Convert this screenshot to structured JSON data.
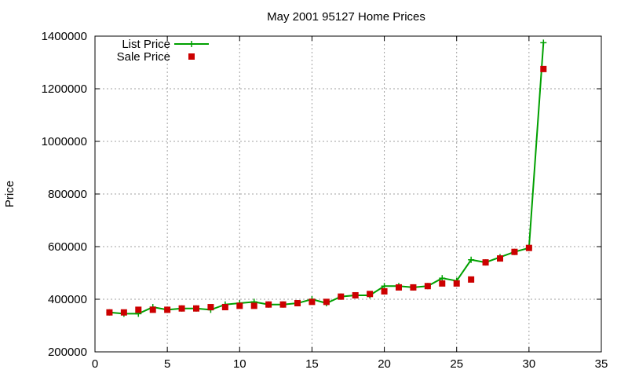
{
  "chart_data": {
    "type": "line",
    "title": "May 2001 95127 Home Prices",
    "xlabel": "",
    "ylabel": "Price",
    "xlim": [
      0,
      35
    ],
    "ylim": [
      200000,
      1400000
    ],
    "xticks": [
      0,
      5,
      10,
      15,
      20,
      25,
      30,
      35
    ],
    "yticks": [
      200000,
      400000,
      600000,
      800000,
      1000000,
      1200000,
      1400000
    ],
    "grid": true,
    "legend_position": "top-left",
    "series": [
      {
        "name": "List Price",
        "style": "line-with-plus-markers",
        "color": "#00a000",
        "x": [
          1,
          2,
          3,
          4,
          5,
          6,
          7,
          8,
          9,
          10,
          11,
          12,
          13,
          14,
          15,
          16,
          17,
          18,
          19,
          20,
          21,
          22,
          23,
          24,
          25,
          26,
          27,
          28,
          29,
          30,
          31
        ],
        "y": [
          350000,
          345000,
          345000,
          370000,
          360000,
          365000,
          365000,
          360000,
          380000,
          385000,
          390000,
          380000,
          380000,
          385000,
          400000,
          385000,
          410000,
          415000,
          415000,
          450000,
          450000,
          445000,
          450000,
          480000,
          470000,
          550000,
          540000,
          560000,
          580000,
          595000,
          1375000
        ]
      },
      {
        "name": "Sale Price",
        "style": "square-markers",
        "color": "#cc0000",
        "x": [
          1,
          2,
          3,
          4,
          5,
          6,
          7,
          8,
          9,
          10,
          11,
          12,
          13,
          14,
          15,
          16,
          17,
          18,
          19,
          20,
          21,
          22,
          23,
          24,
          25,
          26,
          27,
          28,
          29,
          30,
          31
        ],
        "y": [
          350000,
          350000,
          360000,
          360000,
          360000,
          365000,
          365000,
          370000,
          370000,
          375000,
          375000,
          380000,
          380000,
          385000,
          390000,
          390000,
          410000,
          415000,
          420000,
          430000,
          445000,
          445000,
          450000,
          460000,
          460000,
          475000,
          540000,
          555000,
          580000,
          595000,
          1275000
        ]
      }
    ]
  }
}
